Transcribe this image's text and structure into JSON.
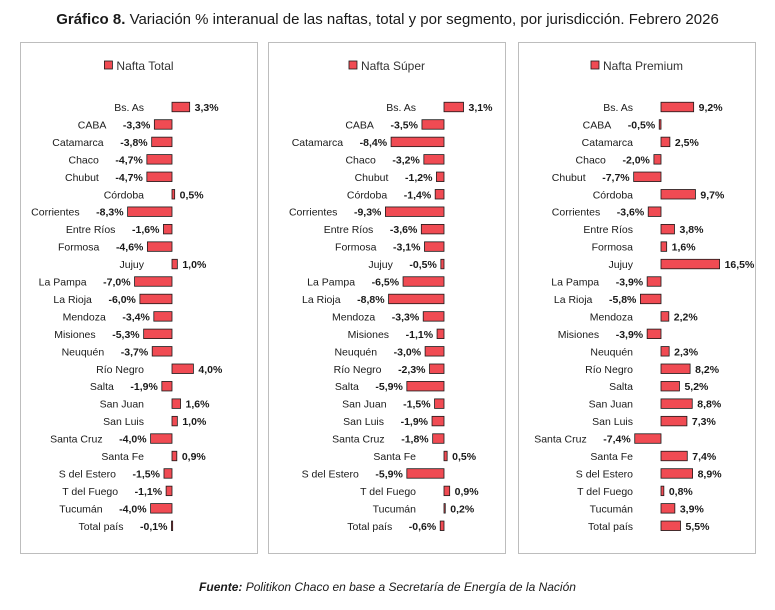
{
  "title": {
    "prefix": "Gráfico 8.",
    "text": "Variación % interanual de las naftas, total y por segmento, por jurisdicción. Febrero 2026"
  },
  "source": {
    "label": "Fuente:",
    "text": "Politikon Chaco en base a Secretaría de Energía de la Nación"
  },
  "colors": {
    "bar": "#f04b53",
    "stroke": "#1a1a1a"
  },
  "chart_data": [
    {
      "type": "bar",
      "orientation": "horizontal",
      "title": "Nafta Total",
      "categories": [
        "Bs. As",
        "CABA",
        "Catamarca",
        "Chaco",
        "Chubut",
        "Córdoba",
        "Corrientes",
        "Entre Ríos",
        "Formosa",
        "Jujuy",
        "La Pampa",
        "La Rioja",
        "Mendoza",
        "Misiones",
        "Neuquén",
        "Río Negro",
        "Salta",
        "San Juan",
        "San Luis",
        "Santa Cruz",
        "Santa Fe",
        "S del Estero",
        "T del Fuego",
        "Tucumán",
        "Total país"
      ],
      "values": [
        3.3,
        -3.3,
        -3.8,
        -4.7,
        -4.7,
        0.5,
        -8.3,
        -1.6,
        -4.6,
        1.0,
        -7.0,
        -6.0,
        -3.4,
        -5.3,
        -3.7,
        4.0,
        -1.9,
        1.6,
        1.0,
        -4.0,
        0.9,
        -1.5,
        -1.1,
        -4.0,
        -0.1
      ],
      "labels": [
        "3,3%",
        "-3,3%",
        "-3,8%",
        "-4,7%",
        "-4,7%",
        "0,5%",
        "-8,3%",
        "-1,6%",
        "-4,6%",
        "1,0%",
        "-7,0%",
        "-6,0%",
        "-3,4%",
        "-5,3%",
        "-3,7%",
        "4,0%",
        "-1,9%",
        "1,6%",
        "1,0%",
        "-4,0%",
        "0,9%",
        "-1,5%",
        "-1,1%",
        "-4,0%",
        "-0,1%"
      ]
    },
    {
      "type": "bar",
      "orientation": "horizontal",
      "title": "Nafta Súper",
      "categories": [
        "Bs. As",
        "CABA",
        "Catamarca",
        "Chaco",
        "Chubut",
        "Córdoba",
        "Corrientes",
        "Entre Ríos",
        "Formosa",
        "Jujuy",
        "La Pampa",
        "La Rioja",
        "Mendoza",
        "Misiones",
        "Neuquén",
        "Río Negro",
        "Salta",
        "San Juan",
        "San Luis",
        "Santa Cruz",
        "Santa Fe",
        "S del Estero",
        "T del Fuego",
        "Tucumán",
        "Total país"
      ],
      "values": [
        3.1,
        -3.5,
        -8.4,
        -3.2,
        -1.2,
        -1.4,
        -9.3,
        -3.6,
        -3.1,
        -0.5,
        -6.5,
        -8.8,
        -3.3,
        -1.1,
        -3.0,
        -2.3,
        -5.9,
        -1.5,
        -1.9,
        -1.8,
        0.5,
        -5.9,
        0.9,
        0.2,
        -0.6
      ],
      "labels": [
        "3,1%",
        "-3,5%",
        "-8,4%",
        "-3,2%",
        "-1,2%",
        "-1,4%",
        "-9,3%",
        "-3,6%",
        "-3,1%",
        "-0,5%",
        "-6,5%",
        "-8,8%",
        "-3,3%",
        "-1,1%",
        "-3,0%",
        "-2,3%",
        "-5,9%",
        "-1,5%",
        "-1,9%",
        "-1,8%",
        "0,5%",
        "-5,9%",
        "0,9%",
        "0,2%",
        "-0,6%"
      ]
    },
    {
      "type": "bar",
      "orientation": "horizontal",
      "title": "Nafta Premium",
      "categories": [
        "Bs. As",
        "CABA",
        "Catamarca",
        "Chaco",
        "Chubut",
        "Córdoba",
        "Corrientes",
        "Entre Ríos",
        "Formosa",
        "Jujuy",
        "La Pampa",
        "La Rioja",
        "Mendoza",
        "Misiones",
        "Neuquén",
        "Río Negro",
        "Salta",
        "San Juan",
        "San Luis",
        "Santa Cruz",
        "Santa Fe",
        "S del Estero",
        "T del Fuego",
        "Tucumán",
        "Total país"
      ],
      "values": [
        9.2,
        -0.5,
        2.5,
        -2.0,
        -7.7,
        9.7,
        -3.6,
        3.8,
        1.6,
        16.5,
        -3.9,
        -5.8,
        2.2,
        -3.9,
        2.3,
        8.2,
        5.2,
        8.8,
        7.3,
        -7.4,
        7.4,
        8.9,
        0.8,
        3.9,
        5.5
      ],
      "labels": [
        "9,2%",
        "-0,5%",
        "2,5%",
        "-2,0%",
        "-7,7%",
        "9,7%",
        "-3,6%",
        "3,8%",
        "1,6%",
        "16,5%",
        "-3,9%",
        "-5,8%",
        "2,2%",
        "-3,9%",
        "2,3%",
        "8,2%",
        "5,2%",
        "8,8%",
        "7,3%",
        "-7,4%",
        "7,4%",
        "8,9%",
        "0,8%",
        "3,9%",
        "5,5%"
      ]
    }
  ]
}
